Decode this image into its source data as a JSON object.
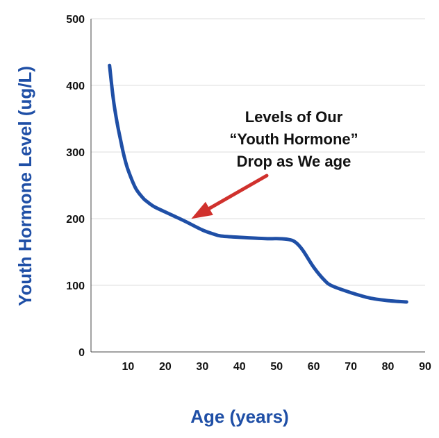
{
  "chart_data": {
    "type": "line",
    "xlabel": "Age (years)",
    "ylabel": "Youth Hormone Level (ug/L)",
    "xlim": [
      0,
      90
    ],
    "ylim": [
      0,
      500
    ],
    "xticks": [
      10,
      20,
      30,
      40,
      50,
      60,
      70,
      80,
      90
    ],
    "yticks": [
      0,
      100,
      200,
      300,
      400,
      500
    ],
    "grid": "horizontal",
    "series": [
      {
        "color": "#1f4fa6",
        "x": [
          5,
          6,
          7,
          8,
          9,
          10,
          12,
          14,
          15,
          17,
          20,
          25,
          30,
          33,
          35,
          40,
          47,
          50,
          53,
          55,
          57,
          60,
          63,
          65,
          70,
          75,
          80,
          85
        ],
        "y": [
          430,
          380,
          345,
          317,
          292,
          273,
          246,
          231,
          226,
          218,
          210,
          197,
          183,
          177,
          174,
          172,
          170,
          170,
          169,
          165,
          153,
          127,
          107,
          99,
          89,
          81,
          77,
          75
        ]
      }
    ],
    "annotation": {
      "lines": [
        "Levels of Our",
        "“Youth Hormone”",
        "Drop as We age"
      ],
      "arrow_color": "#d0312d",
      "arrow_target": [
        27,
        205
      ]
    }
  },
  "colors": {
    "axis_title": "#1f4fa6",
    "line": "#1f4fa6",
    "grid": "#dddddd",
    "axis": "#444444"
  }
}
